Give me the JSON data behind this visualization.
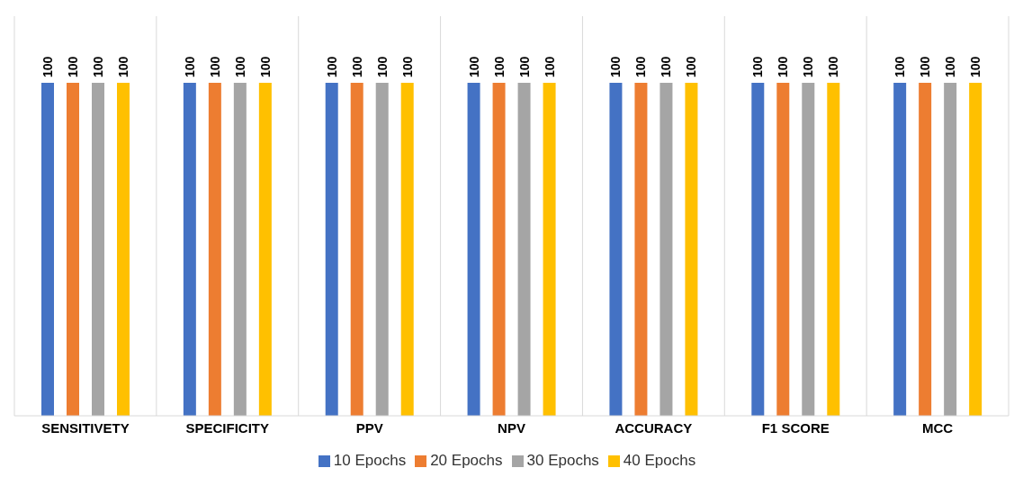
{
  "chart_data": {
    "type": "bar",
    "categories": [
      "SENSITIVETY",
      "SPECIFICITY",
      "PPV",
      "NPV",
      "ACCURACY",
      "F1 SCORE",
      "MCC"
    ],
    "series": [
      {
        "name": "10 Epochs",
        "color": "#4472c4",
        "values": [
          100,
          100,
          100,
          100,
          100,
          100,
          100
        ]
      },
      {
        "name": "20 Epochs",
        "color": "#ed7d31",
        "values": [
          100,
          100,
          100,
          100,
          100,
          100,
          100
        ]
      },
      {
        "name": "30 Epochs",
        "color": "#a5a5a5",
        "values": [
          100,
          100,
          100,
          100,
          100,
          100,
          100
        ]
      },
      {
        "name": "40 Epochs",
        "color": "#ffc000",
        "values": [
          100,
          100,
          100,
          100,
          100,
          100,
          100
        ]
      }
    ],
    "data_labels": true,
    "grid": "x",
    "legend": "bottom"
  }
}
